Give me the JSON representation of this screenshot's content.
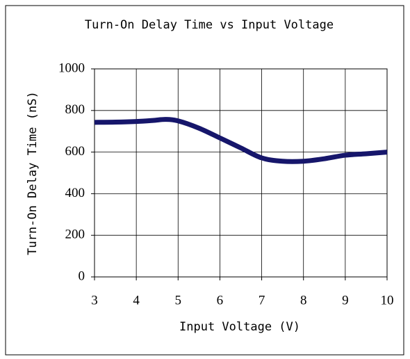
{
  "chart_data": {
    "type": "line",
    "title": "Turn-On Delay Time vs Input Voltage",
    "xlabel": "Input Voltage (V)",
    "ylabel": "Turn-On Delay Time (nS)",
    "x": [
      3,
      3.5,
      4,
      4.4,
      4.7,
      5,
      5.5,
      6,
      6.5,
      7,
      7.5,
      8,
      8.5,
      9,
      9.5,
      10
    ],
    "series": [
      {
        "name": "Turn-On Delay Time",
        "color": "#16166b",
        "values": [
          743,
          744,
          747,
          752,
          757,
          750,
          715,
          668,
          620,
          572,
          556,
          556,
          568,
          585,
          592,
          600
        ]
      }
    ],
    "xlim": [
      3,
      10
    ],
    "xticks": [
      3,
      4,
      5,
      6,
      7,
      8,
      9,
      10
    ],
    "ylim": [
      0,
      1000
    ],
    "yticks": [
      0,
      200,
      400,
      600,
      800,
      1000
    ],
    "grid": true
  }
}
